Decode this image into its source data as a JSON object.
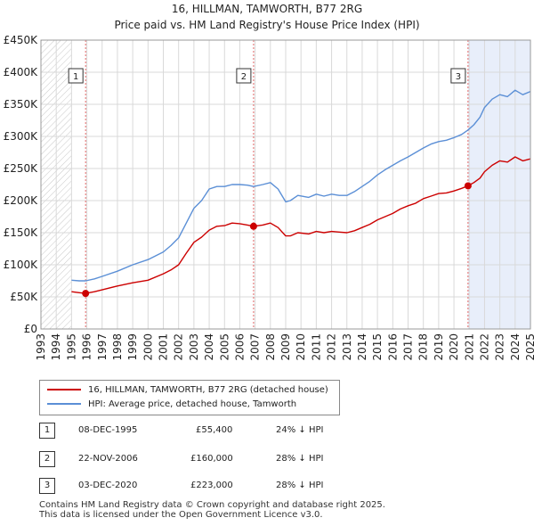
{
  "chart_data": {
    "type": "line",
    "title": "16, HILLMAN, TAMWORTH, B77 2RG",
    "subtitle": "Price paid vs. HM Land Registry's House Price Index (HPI)",
    "xlim": [
      1993,
      2025
    ],
    "ylim": [
      0,
      450000
    ],
    "y_ticks": [
      0,
      50000,
      100000,
      150000,
      200000,
      250000,
      300000,
      350000,
      400000,
      450000
    ],
    "y_tick_labels": [
      "£0",
      "£50K",
      "£100K",
      "£150K",
      "£200K",
      "£250K",
      "£300K",
      "£350K",
      "£400K",
      "£450K"
    ],
    "x_ticks": [
      1993,
      1994,
      1995,
      1996,
      1997,
      1998,
      1999,
      2000,
      2001,
      2002,
      2003,
      2004,
      2005,
      2006,
      2007,
      2008,
      2009,
      2010,
      2011,
      2012,
      2013,
      2014,
      2015,
      2016,
      2017,
      2018,
      2019,
      2020,
      2021,
      2022,
      2023,
      2024,
      2025
    ],
    "x_tick_labels": [
      "1993",
      "1994",
      "1995",
      "1996",
      "1997",
      "1998",
      "1999",
      "2000",
      "2001",
      "2002",
      "2003",
      "2004",
      "2005",
      "2006",
      "2007",
      "2008",
      "2009",
      "2010",
      "2011",
      "2012",
      "2013",
      "2014",
      "2015",
      "2016",
      "2017",
      "2018",
      "2019",
      "2020",
      "2021",
      "2022",
      "2023",
      "2024",
      "2025"
    ],
    "hatched_ranges": [
      [
        1993,
        1995.0
      ],
      [
        2025.0,
        2025.5
      ]
    ],
    "highlight_range": [
      2020.92,
      2025.5
    ],
    "series": [
      {
        "name": "16, HILLMAN, TAMWORTH, B77 2RG (detached house)",
        "color": "#cc0000",
        "x": [
          1995.0,
          1995.5,
          1995.92,
          1996.5,
          1997,
          1998,
          1999,
          2000,
          2001,
          2001.5,
          2002,
          2002.5,
          2003,
          2003.5,
          2004,
          2004.5,
          2005,
          2005.5,
          2006,
          2006.5,
          2006.9,
          2007.5,
          2008,
          2008.5,
          2009,
          2009.3,
          2009.8,
          2010.5,
          2011,
          2011.5,
          2012,
          2012.5,
          2013,
          2013.5,
          2014,
          2014.5,
          2015,
          2015.5,
          2016,
          2016.5,
          2017,
          2017.5,
          2018,
          2018.5,
          2019,
          2019.5,
          2020,
          2020.5,
          2020.92,
          2021.3,
          2021.7,
          2022,
          2022.5,
          2023,
          2023.5,
          2024,
          2024.5,
          2025.0
        ],
        "values": [
          58000,
          56500,
          55400,
          58000,
          61000,
          67000,
          72000,
          76000,
          86000,
          92000,
          100000,
          118000,
          135000,
          143000,
          154000,
          160000,
          161000,
          165000,
          164000,
          162000,
          160000,
          162000,
          165000,
          158000,
          145000,
          145000,
          150000,
          148000,
          152000,
          150000,
          152000,
          151000,
          150000,
          153000,
          158000,
          163000,
          170000,
          175000,
          180000,
          187000,
          192000,
          196000,
          203000,
          207000,
          211000,
          212000,
          215000,
          219000,
          223000,
          228000,
          235000,
          245000,
          255000,
          262000,
          260000,
          268000,
          262000,
          265000
        ]
      },
      {
        "name": "HPI: Average price, detached house, Tamworth",
        "color": "#5b8fd6",
        "x": [
          1995.0,
          1995.5,
          1995.92,
          1996.5,
          1997,
          1998,
          1999,
          2000,
          2001,
          2001.5,
          2002,
          2002.5,
          2003,
          2003.5,
          2004,
          2004.5,
          2005,
          2005.5,
          2006,
          2006.5,
          2006.9,
          2007.5,
          2008,
          2008.5,
          2009,
          2009.3,
          2009.8,
          2010.5,
          2011,
          2011.5,
          2012,
          2012.5,
          2013,
          2013.5,
          2014,
          2014.5,
          2015,
          2015.5,
          2016,
          2016.5,
          2017,
          2017.5,
          2018,
          2018.5,
          2019,
          2019.5,
          2020,
          2020.5,
          2020.92,
          2021.3,
          2021.7,
          2022,
          2022.5,
          2023,
          2023.5,
          2024,
          2024.5,
          2025.0
        ],
        "values": [
          76000,
          75000,
          75000,
          78000,
          82000,
          90000,
          100000,
          108000,
          120000,
          130000,
          142000,
          165000,
          188000,
          200000,
          218000,
          222000,
          222000,
          225000,
          225000,
          224000,
          222000,
          225000,
          228000,
          218000,
          198000,
          200000,
          208000,
          205000,
          210000,
          207000,
          210000,
          208000,
          208000,
          214000,
          222000,
          230000,
          240000,
          248000,
          255000,
          262000,
          268000,
          275000,
          282000,
          288000,
          292000,
          294000,
          298000,
          303000,
          310000,
          318000,
          330000,
          345000,
          358000,
          365000,
          362000,
          372000,
          365000,
          370000
        ]
      }
    ],
    "sale_markers": [
      {
        "label": "1",
        "x": 1995.92,
        "price": 55400
      },
      {
        "label": "2",
        "x": 2006.9,
        "price": 160000
      },
      {
        "label": "3",
        "x": 2020.92,
        "price": 223000
      }
    ]
  },
  "legend": {
    "price_paid": "16, HILLMAN, TAMWORTH, B77 2RG (detached house)",
    "hpi": "HPI: Average price, detached house, Tamworth"
  },
  "sales": [
    {
      "num": "1",
      "date": "08-DEC-1995",
      "price": "£55,400",
      "hpi": "24% ↓ HPI"
    },
    {
      "num": "2",
      "date": "22-NOV-2006",
      "price": "£160,000",
      "hpi": "28% ↓ HPI"
    },
    {
      "num": "3",
      "date": "03-DEC-2020",
      "price": "£223,000",
      "hpi": "28% ↓ HPI"
    }
  ],
  "footer": {
    "line1": "Contains HM Land Registry data © Crown copyright and database right 2025.",
    "line2": "This data is licensed under the Open Government Licence v3.0."
  }
}
